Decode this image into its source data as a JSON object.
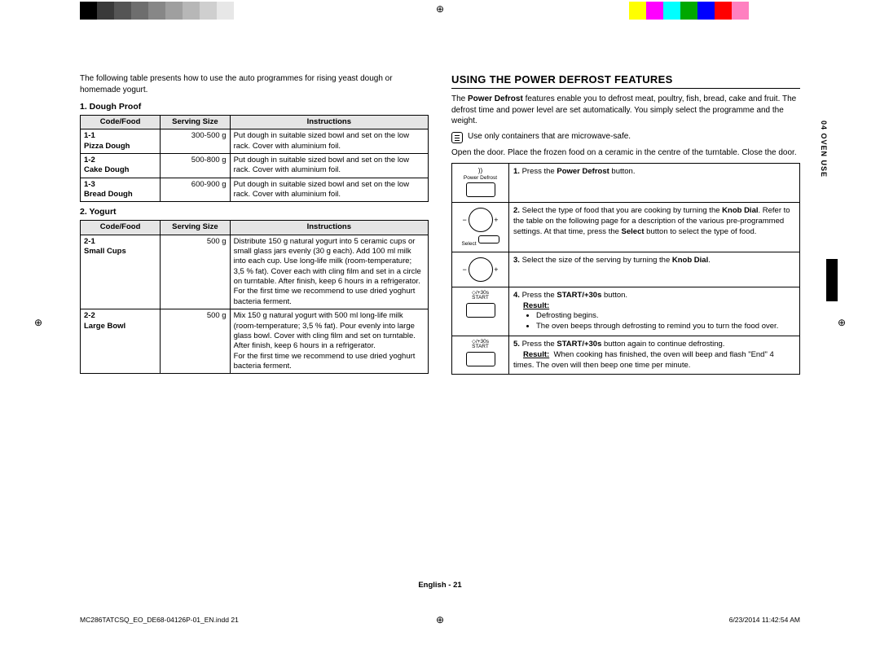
{
  "colorbar_left": [
    "#000000",
    "#3a3a3a",
    "#555555",
    "#6e6e6e",
    "#878787",
    "#9f9f9f",
    "#b7b7b7",
    "#cfcfcf",
    "#e7e7e7",
    "#ffffff",
    "#ffffff",
    "#ffffff",
    "#ffffff",
    "#ffffff",
    "#ffffff",
    "#ffffff",
    "#ffffff",
    "#ffffff",
    "#ffffff",
    "#ffffff"
  ],
  "colorbar_right": [
    "#ffffff",
    "#ffffff",
    "#ffffff",
    "#ffffff",
    "#ffffff",
    "#ffffff",
    "#ffffff",
    "#ffffff",
    "#ffffff",
    "#ffffff",
    "#ffff00",
    "#ff00ff",
    "#00ffff",
    "#00a800",
    "#0000ff",
    "#ff0000",
    "#ff80c0",
    "#ffffff",
    "#ffffff",
    "#ffffff"
  ],
  "intro": "The following table presents how to use the auto programmes for rising yeast dough or homemade yogurt.",
  "t1_title": "1. Dough Proof",
  "t2_title": "2. Yogurt",
  "headers": {
    "c1": "Code/Food",
    "c2": "Serving Size",
    "c3": "Instructions"
  },
  "dough": [
    {
      "code": "1-1",
      "food": "Pizza Dough",
      "size": "300-500 g",
      "inst": "Put dough in suitable sized bowl and set on the low rack. Cover with aluminium foil."
    },
    {
      "code": "1-2",
      "food": "Cake Dough",
      "size": "500-800 g",
      "inst": "Put dough in suitable sized bowl and set on the low rack. Cover with aluminium foil."
    },
    {
      "code": "1-3",
      "food": "Bread Dough",
      "size": "600-900 g",
      "inst": "Put dough in suitable sized bowl and set on the low rack. Cover with aluminium foil."
    }
  ],
  "yogurt": [
    {
      "code": "2-1",
      "food": "Small Cups",
      "size": "500 g",
      "inst": "Distribute 150 g natural yogurt into 5 ceramic cups or small glass jars evenly (30 g each). Add 100 ml milk into each cup. Use long-life milk (room-temperature; 3,5 % fat). Cover each with cling film and set in a circle on turntable. After finish, keep 6 hours in a refrigerator.\nFor the first time we recommend to use dried yoghurt bacteria ferment."
    },
    {
      "code": "2-2",
      "food": "Large Bowl",
      "size": "500 g",
      "inst": "Mix 150 g natural yogurt with 500 ml long-life milk (room-temperature; 3,5 % fat). Pour evenly into large glass bowl. Cover with cling film and set on turntable. After finish, keep 6 hours in a refrigerator.\nFor the first time we recommend to use dried yoghurt bacteria ferment."
    }
  ],
  "section_head": "USING THE POWER DEFROST FEATURES",
  "pd_intro_a": "The ",
  "pd_intro_b": "Power Defrost",
  "pd_intro_c": " features enable you to defrost meat, poultry, fish, bread, cake and fruit. The defrost time and power level are set automatically. You simply select the programme and the weight.",
  "note_text": "Use only containers that are microwave-safe.",
  "open_door": "Open the door. Place the frozen food on a ceramic in the centre of the turntable. Close the door.",
  "steps": {
    "s1": {
      "label": "Power Defrost",
      "t": "1.",
      "txt": "Press the Power Defrost button."
    },
    "s2": {
      "label": "Select",
      "t": "2.",
      "txt": "Select the type of food that you are cooking by turning the Knob Dial. Refer to the table on the following page for a description of the various pre-programmed settings. At that time, press the Select button to select the type of food."
    },
    "s3": {
      "t": "3.",
      "txt": "Select the size of the serving by turning the Knob Dial."
    },
    "s4": {
      "label": "START",
      "icn": "◇/+30s",
      "t": "4.",
      "txt": "Press the START/+30s button.",
      "res": "Result:",
      "b1": "Defrosting begins.",
      "b2": "The oven beeps through defrosting to remind you to turn the food over."
    },
    "s5": {
      "label": "START",
      "icn": "◇/+30s",
      "t": "5.",
      "txt": "Press the START/+30s button again to continue defrosting.",
      "res": "Result:",
      "b3": "When cooking has finished, the oven will beep and flash \"End\" 4 times. The oven will then beep one time per minute."
    }
  },
  "side_tab": "04  OVEN USE",
  "footer_center": "English - 21",
  "footer_left": "MC286TATCSQ_EO_DE68-04126P-01_EN.indd   21",
  "footer_right": "6/23/2014   11:42:54 AM"
}
